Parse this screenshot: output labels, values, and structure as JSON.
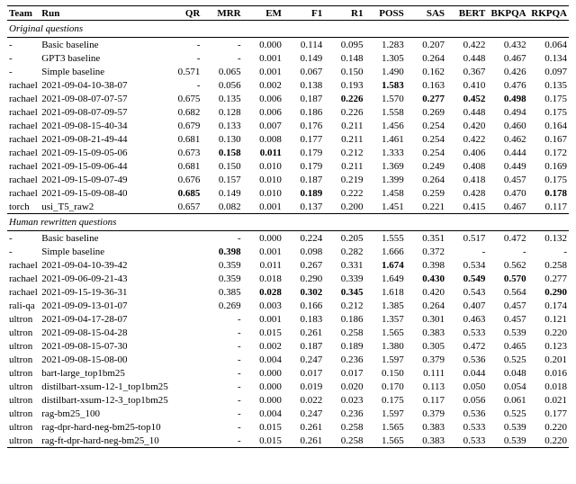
{
  "columns": [
    "Team",
    "Run",
    "QR",
    "MRR",
    "EM",
    "F1",
    "R1",
    "POSS",
    "SAS",
    "BERT",
    "BKPQA",
    "RKPQA"
  ],
  "sections": [
    {
      "title": "Original questions",
      "rows": [
        {
          "team": "-",
          "run": "Basic baseline",
          "cells": [
            "-",
            "-",
            "0.000",
            "0.114",
            "0.095",
            "1.283",
            "0.207",
            "0.422",
            "0.432",
            "0.064"
          ],
          "bold": [
            0,
            0,
            0,
            0,
            0,
            0,
            0,
            0,
            0,
            0
          ]
        },
        {
          "team": "-",
          "run": "GPT3 baseline",
          "cells": [
            "-",
            "-",
            "0.001",
            "0.149",
            "0.148",
            "1.305",
            "0.264",
            "0.448",
            "0.467",
            "0.134"
          ],
          "bold": [
            0,
            0,
            0,
            0,
            0,
            0,
            0,
            0,
            0,
            0
          ]
        },
        {
          "team": "-",
          "run": "Simple baseline",
          "cells": [
            "0.571",
            "0.065",
            "0.001",
            "0.067",
            "0.150",
            "1.490",
            "0.162",
            "0.367",
            "0.426",
            "0.097"
          ],
          "bold": [
            0,
            0,
            0,
            0,
            0,
            0,
            0,
            0,
            0,
            0
          ]
        },
        {
          "team": "rachael",
          "run": "2021-09-04-10-38-07",
          "cells": [
            "-",
            "0.056",
            "0.002",
            "0.138",
            "0.193",
            "1.583",
            "0.163",
            "0.410",
            "0.476",
            "0.135"
          ],
          "bold": [
            0,
            0,
            0,
            0,
            0,
            1,
            0,
            0,
            0,
            0
          ]
        },
        {
          "team": "rachael",
          "run": "2021-09-08-07-07-57",
          "cells": [
            "0.675",
            "0.135",
            "0.006",
            "0.187",
            "0.226",
            "1.570",
            "0.277",
            "0.452",
            "0.498",
            "0.175"
          ],
          "bold": [
            0,
            0,
            0,
            0,
            1,
            0,
            1,
            1,
            1,
            0
          ]
        },
        {
          "team": "rachael",
          "run": "2021-09-08-07-09-57",
          "cells": [
            "0.682",
            "0.128",
            "0.006",
            "0.186",
            "0.226",
            "1.558",
            "0.269",
            "0.448",
            "0.494",
            "0.175"
          ],
          "bold": [
            0,
            0,
            0,
            0,
            0,
            0,
            0,
            0,
            0,
            0
          ]
        },
        {
          "team": "rachael",
          "run": "2021-09-08-15-40-34",
          "cells": [
            "0.679",
            "0.133",
            "0.007",
            "0.176",
            "0.211",
            "1.456",
            "0.254",
            "0.420",
            "0.460",
            "0.164"
          ],
          "bold": [
            0,
            0,
            0,
            0,
            0,
            0,
            0,
            0,
            0,
            0
          ]
        },
        {
          "team": "rachael",
          "run": "2021-09-08-21-49-44",
          "cells": [
            "0.681",
            "0.130",
            "0.008",
            "0.177",
            "0.211",
            "1.461",
            "0.254",
            "0.422",
            "0.462",
            "0.167"
          ],
          "bold": [
            0,
            0,
            0,
            0,
            0,
            0,
            0,
            0,
            0,
            0
          ]
        },
        {
          "team": "rachael",
          "run": "2021-09-15-09-05-06",
          "cells": [
            "0.673",
            "0.158",
            "0.011",
            "0.179",
            "0.212",
            "1.333",
            "0.254",
            "0.406",
            "0.444",
            "0.172"
          ],
          "bold": [
            0,
            1,
            1,
            0,
            0,
            0,
            0,
            0,
            0,
            0
          ]
        },
        {
          "team": "rachael",
          "run": "2021-09-15-09-06-44",
          "cells": [
            "0.681",
            "0.150",
            "0.010",
            "0.179",
            "0.211",
            "1.369",
            "0.249",
            "0.408",
            "0.449",
            "0.169"
          ],
          "bold": [
            0,
            0,
            0,
            0,
            0,
            0,
            0,
            0,
            0,
            0
          ]
        },
        {
          "team": "rachael",
          "run": "2021-09-15-09-07-49",
          "cells": [
            "0.676",
            "0.157",
            "0.010",
            "0.187",
            "0.219",
            "1.399",
            "0.264",
            "0.418",
            "0.457",
            "0.175"
          ],
          "bold": [
            0,
            0,
            0,
            0,
            0,
            0,
            0,
            0,
            0,
            0
          ]
        },
        {
          "team": "rachael",
          "run": "2021-09-15-09-08-40",
          "cells": [
            "0.685",
            "0.149",
            "0.010",
            "0.189",
            "0.222",
            "1.458",
            "0.259",
            "0.428",
            "0.470",
            "0.178"
          ],
          "bold": [
            1,
            0,
            0,
            1,
            0,
            0,
            0,
            0,
            0,
            1
          ]
        },
        {
          "team": "torch",
          "run": "usi_T5_raw2",
          "cells": [
            "0.657",
            "0.082",
            "0.001",
            "0.137",
            "0.200",
            "1.451",
            "0.221",
            "0.415",
            "0.467",
            "0.117"
          ],
          "bold": [
            0,
            0,
            0,
            0,
            0,
            0,
            0,
            0,
            0,
            0
          ]
        }
      ]
    },
    {
      "title": "Human rewritten questions",
      "rows": [
        {
          "team": "-",
          "run": "Basic baseline",
          "cells": [
            "",
            "-",
            "0.000",
            "0.224",
            "0.205",
            "1.555",
            "0.351",
            "0.517",
            "0.472",
            "0.132"
          ],
          "bold": [
            0,
            0,
            0,
            0,
            0,
            0,
            0,
            0,
            0,
            0
          ]
        },
        {
          "team": "-",
          "run": "Simple baseline",
          "cells": [
            "",
            "0.398",
            "0.001",
            "0.098",
            "0.282",
            "1.666",
            "0.372",
            "-",
            "-",
            "-"
          ],
          "bold": [
            0,
            1,
            0,
            0,
            0,
            0,
            0,
            0,
            0,
            0
          ]
        },
        {
          "team": "rachael",
          "run": "2021-09-04-10-39-42",
          "cells": [
            "",
            "0.359",
            "0.011",
            "0.267",
            "0.331",
            "1.674",
            "0.398",
            "0.534",
            "0.562",
            "0.258"
          ],
          "bold": [
            0,
            0,
            0,
            0,
            0,
            1,
            0,
            0,
            0,
            0
          ]
        },
        {
          "team": "rachael",
          "run": "2021-09-06-09-21-43",
          "cells": [
            "",
            "0.359",
            "0.018",
            "0.290",
            "0.339",
            "1.649",
            "0.430",
            "0.549",
            "0.570",
            "0.277"
          ],
          "bold": [
            0,
            0,
            0,
            0,
            0,
            0,
            1,
            1,
            1,
            0
          ]
        },
        {
          "team": "rachael",
          "run": "2021-09-15-19-36-31",
          "cells": [
            "",
            "0.385",
            "0.028",
            "0.302",
            "0.345",
            "1.618",
            "0.420",
            "0.543",
            "0.564",
            "0.290"
          ],
          "bold": [
            0,
            0,
            1,
            1,
            1,
            0,
            0,
            0,
            0,
            1
          ]
        },
        {
          "team": "rali-qa",
          "run": "2021-09-09-13-01-07",
          "cells": [
            "",
            "0.269",
            "0.003",
            "0.166",
            "0.212",
            "1.385",
            "0.264",
            "0.407",
            "0.457",
            "0.174"
          ],
          "bold": [
            0,
            0,
            0,
            0,
            0,
            0,
            0,
            0,
            0,
            0
          ]
        },
        {
          "team": "ultron",
          "run": "2021-09-04-17-28-07",
          "cells": [
            "",
            "-",
            "0.001",
            "0.183",
            "0.186",
            "1.357",
            "0.301",
            "0.463",
            "0.457",
            "0.121"
          ],
          "bold": [
            0,
            0,
            0,
            0,
            0,
            0,
            0,
            0,
            0,
            0
          ]
        },
        {
          "team": "ultron",
          "run": "2021-09-08-15-04-28",
          "cells": [
            "",
            "-",
            "0.015",
            "0.261",
            "0.258",
            "1.565",
            "0.383",
            "0.533",
            "0.539",
            "0.220"
          ],
          "bold": [
            0,
            0,
            0,
            0,
            0,
            0,
            0,
            0,
            0,
            0
          ]
        },
        {
          "team": "ultron",
          "run": "2021-09-08-15-07-30",
          "cells": [
            "",
            "-",
            "0.002",
            "0.187",
            "0.189",
            "1.380",
            "0.305",
            "0.472",
            "0.465",
            "0.123"
          ],
          "bold": [
            0,
            0,
            0,
            0,
            0,
            0,
            0,
            0,
            0,
            0
          ]
        },
        {
          "team": "ultron",
          "run": "2021-09-08-15-08-00",
          "cells": [
            "",
            "-",
            "0.004",
            "0.247",
            "0.236",
            "1.597",
            "0.379",
            "0.536",
            "0.525",
            "0.201"
          ],
          "bold": [
            0,
            0,
            0,
            0,
            0,
            0,
            0,
            0,
            0,
            0
          ]
        },
        {
          "team": "ultron",
          "run": "bart-large_top1bm25",
          "cells": [
            "",
            "-",
            "0.000",
            "0.017",
            "0.017",
            "0.150",
            "0.111",
            "0.044",
            "0.048",
            "0.016"
          ],
          "bold": [
            0,
            0,
            0,
            0,
            0,
            0,
            0,
            0,
            0,
            0
          ]
        },
        {
          "team": "ultron",
          "run": "distilbart-xsum-12-1_top1bm25",
          "cells": [
            "",
            "-",
            "0.000",
            "0.019",
            "0.020",
            "0.170",
            "0.113",
            "0.050",
            "0.054",
            "0.018"
          ],
          "bold": [
            0,
            0,
            0,
            0,
            0,
            0,
            0,
            0,
            0,
            0
          ]
        },
        {
          "team": "ultron",
          "run": "distilbart-xsum-12-3_top1bm25",
          "cells": [
            "",
            "-",
            "0.000",
            "0.022",
            "0.023",
            "0.175",
            "0.117",
            "0.056",
            "0.061",
            "0.021"
          ],
          "bold": [
            0,
            0,
            0,
            0,
            0,
            0,
            0,
            0,
            0,
            0
          ]
        },
        {
          "team": "ultron",
          "run": "rag-bm25_100",
          "cells": [
            "",
            "-",
            "0.004",
            "0.247",
            "0.236",
            "1.597",
            "0.379",
            "0.536",
            "0.525",
            "0.177"
          ],
          "bold": [
            0,
            0,
            0,
            0,
            0,
            0,
            0,
            0,
            0,
            0
          ]
        },
        {
          "team": "ultron",
          "run": "rag-dpr-hard-neg-bm25-top10",
          "cells": [
            "",
            "-",
            "0.015",
            "0.261",
            "0.258",
            "1.565",
            "0.383",
            "0.533",
            "0.539",
            "0.220"
          ],
          "bold": [
            0,
            0,
            0,
            0,
            0,
            0,
            0,
            0,
            0,
            0
          ]
        },
        {
          "team": "ultron",
          "run": "rag-ft-dpr-hard-neg-bm25_10",
          "cells": [
            "",
            "-",
            "0.015",
            "0.261",
            "0.258",
            "1.565",
            "0.383",
            "0.533",
            "0.539",
            "0.220"
          ],
          "bold": [
            0,
            0,
            0,
            0,
            0,
            0,
            0,
            0,
            0,
            0
          ]
        }
      ]
    }
  ]
}
